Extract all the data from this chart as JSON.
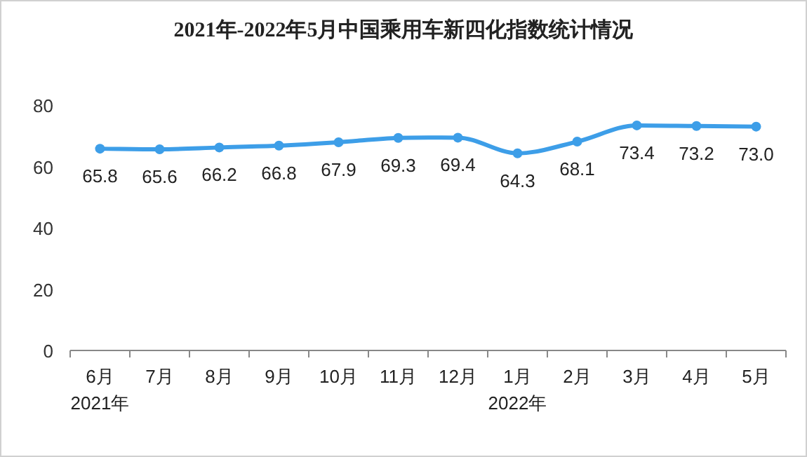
{
  "chart_data": {
    "type": "line",
    "title": "2021年-2022年5月中国乘用车新四化指数统计情况",
    "categories": [
      "6月\n2021年",
      "7月",
      "8月",
      "9月",
      "10月",
      "11月",
      "12月",
      "1月\n2022年",
      "2月",
      "3月",
      "4月",
      "5月"
    ],
    "series": [
      {
        "color": "#3d9ee8",
        "values": [
          65.8,
          65.6,
          66.2,
          66.8,
          67.9,
          69.3,
          69.4,
          64.3,
          68.1,
          73.4,
          73.2,
          73.0
        ],
        "value_labels": [
          "65.8",
          "65.6",
          "66.2",
          "66.8",
          "67.9",
          "69.3",
          "69.4",
          "64.3",
          "68.1",
          "73.4",
          "73.2",
          "73.0"
        ]
      }
    ],
    "ylim": [
      0,
      80
    ],
    "yticks": [
      0,
      20,
      40,
      60,
      80
    ],
    "grid": false,
    "marker": "circle",
    "line_style": "solid"
  }
}
